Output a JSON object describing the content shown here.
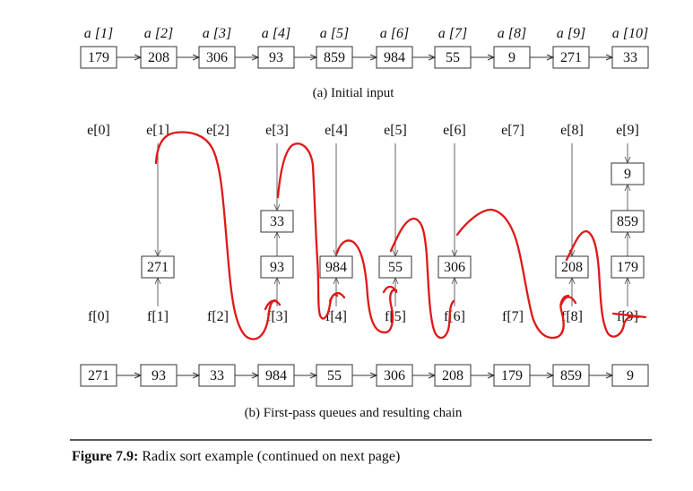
{
  "input_row": {
    "labels": [
      "a [1]",
      "a [2]",
      "a [3]",
      "a [4]",
      "a [5]",
      "a [6]",
      "a [7]",
      "a [8]",
      "a [9]",
      "a [10]"
    ],
    "values": [
      "179",
      "208",
      "306",
      "93",
      "859",
      "984",
      "55",
      "9",
      "271",
      "33"
    ],
    "caption": "(a) Initial input"
  },
  "queues": {
    "front_labels": [
      "e[0]",
      "e[1]",
      "e[2]",
      "e[3]",
      "e[4]",
      "e[5]",
      "e[6]",
      "e[7]",
      "e[8]",
      "e[9]"
    ],
    "rear_labels": [
      "f[0]",
      "f[1]",
      "f[2]",
      "f[3]",
      "f[4]",
      "f[5]",
      "f[6]",
      "f[7]",
      "f[8]",
      "f[9]"
    ],
    "contents": [
      [],
      [
        "271"
      ],
      [],
      [
        "93",
        "33"
      ],
      [
        "984"
      ],
      [
        "55"
      ],
      [
        "306"
      ],
      [],
      [
        "208"
      ],
      [
        "179",
        "859",
        "9"
      ]
    ]
  },
  "result_chain": {
    "values": [
      "271",
      "93",
      "33",
      "984",
      "55",
      "306",
      "208",
      "179",
      "859",
      "9"
    ],
    "caption": "(b) First-pass queues and resulting chain"
  },
  "figure": {
    "label": "Figure 7.9:",
    "text": " Radix sort example (continued on next page)"
  },
  "annotation": {
    "color": "#e01818"
  }
}
